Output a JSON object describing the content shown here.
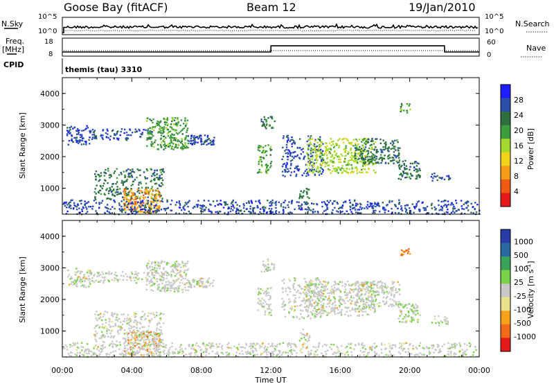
{
  "header": {
    "station": "Goose Bay (fitACF)",
    "beam": "Beam 12",
    "date": "19/Jan/2010"
  },
  "panels": {
    "nsky_label": "N.Sky",
    "nsky_ticks": [
      "10^5",
      "10^0"
    ],
    "nsearch_label": "N.Search",
    "nsearch_ticks": [
      "10^5",
      "10^0"
    ],
    "freq_label_1": "Freq.",
    "freq_label_2": "[MHz]",
    "freq_ticks": [
      "18",
      "8"
    ],
    "nave_label": "Nave",
    "nave_ticks": [
      "60",
      "0"
    ],
    "cpid_label": "CPID",
    "cpid_text": "themis (tau) 3310"
  },
  "colors": {
    "power": [
      "#1e1eff",
      "#2b4fa8",
      "#2f6e3e",
      "#3d9d3d",
      "#a6d92f",
      "#f2d21b",
      "#f59b17",
      "#ef5a12",
      "#e41a1a"
    ],
    "velocity": [
      "#2a3ca8",
      "#2a6aa0",
      "#3aa35a",
      "#79d24a",
      "#c8c8c8",
      "#e7e18a",
      "#f5a21a",
      "#f06a18",
      "#e41a1a"
    ]
  },
  "chart_data": [
    {
      "type": "line",
      "title": "N.Sky / N.Search",
      "ylabel": "N.Sky",
      "ylabel_right": "N.Search",
      "x_range": [
        0,
        24
      ]
    },
    {
      "type": "line",
      "ylabel": "Freq. [MHz]",
      "ylabel_right": "Nave",
      "ylim": [
        8,
        18
      ],
      "ylim_right": [
        0,
        60
      ],
      "x_range": [
        0,
        24
      ],
      "series": [
        {
          "name": "Freq.",
          "x": [
            0,
            0.01,
            12,
            12.01,
            22,
            22.01,
            24
          ],
          "y": [
            10.8,
            10.8,
            10.8,
            15.7,
            15.7,
            10.8,
            10.8
          ]
        }
      ]
    },
    {
      "type": "heatmap",
      "xlabel": "Time UT",
      "ylabel": "Slant Range [km]",
      "x_ticks": [
        "00:00",
        "04:00",
        "08:00",
        "12:00",
        "16:00",
        "20:00",
        "00:00"
      ],
      "y_ticks": [
        "1000",
        "2000",
        "3000",
        "4000"
      ],
      "ylim": [
        180,
        4500
      ],
      "colorbar_label": "Power [dB]",
      "colorbar_ticks": [
        "4",
        "8",
        "12",
        "16",
        "20",
        "24",
        "28"
      ]
    },
    {
      "type": "heatmap",
      "xlabel": "Time UT",
      "ylabel": "Slant Range [km]",
      "x_ticks": [
        "00:00",
        "04:00",
        "08:00",
        "12:00",
        "16:00",
        "20:00",
        "00:00"
      ],
      "y_ticks": [
        "1000",
        "2000",
        "3000",
        "4000"
      ],
      "ylim": [
        180,
        4500
      ],
      "colorbar_label": "Velocity [m s^-1]",
      "colorbar_ticks": [
        "1000",
        "500",
        "100",
        "25",
        "-25",
        "-100",
        "-500",
        "-1000"
      ]
    }
  ]
}
